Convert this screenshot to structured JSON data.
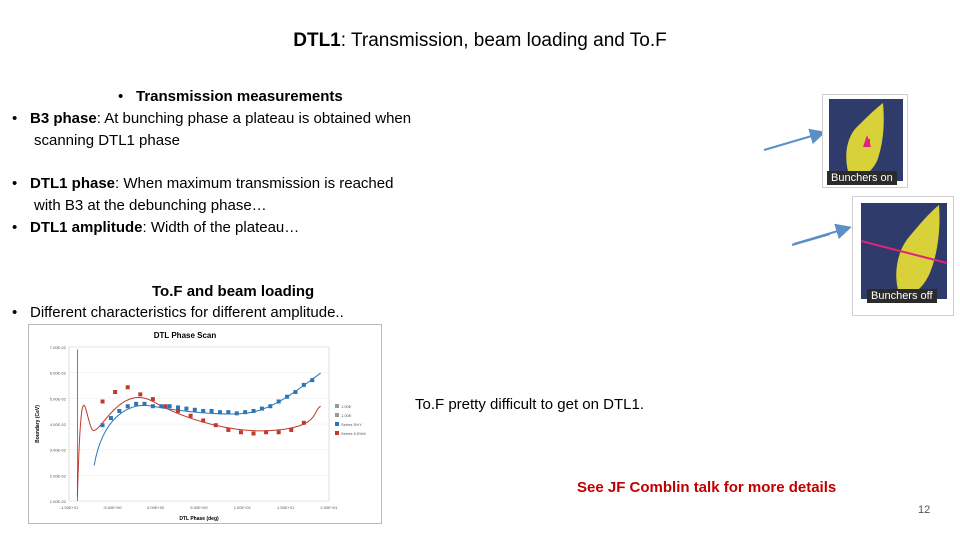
{
  "title": {
    "bold": "DTL1",
    "rest": ": Transmission, beam loading and To.F"
  },
  "section1": {
    "heading_bullet": "•",
    "heading": "Transmission measurements",
    "b3_label": "B3 phase",
    "b3_text_line1": ": At bunching phase a plateau is obtained when",
    "b3_text_line2": "scanning DTL1 phase",
    "dtl_phase_label": "DTL1 phase",
    "dtl_phase_line1": ": When maximum transmission is reached",
    "dtl_phase_line2": "with B3 at the debunching phase…",
    "dtl_amp_label": "DTL1 amplitude",
    "dtl_amp_text": ": Width of the plateau…"
  },
  "section2": {
    "heading": "To.F and beam loading",
    "text": "Different characteristics for different amplitude.."
  },
  "bullet": "•",
  "thumbs": {
    "top_caption": "Bunchers on",
    "bottom_caption": "Bunchers off"
  },
  "note_tof": "To.F pretty difficult to get on DTL1.",
  "note_ref": "See JF Comblin talk for more details",
  "slide_number": "12",
  "colors": {
    "accent_red": "#c00000",
    "series_blue": "#2e75b6",
    "series_red": "#c0392b",
    "arrow": "#5b8fc7"
  },
  "chart_data": {
    "type": "scatter",
    "title": "DTL Phase Scan",
    "xlabel": "DTL Phase (deg)",
    "ylabel": "Boundary (CeV)",
    "xlim": [
      -1.0,
      2.1
    ],
    "ylim": [
      1.0,
      7.5
    ],
    "yticks": [
      "1.00E-02",
      "2.00E-02",
      "3.00E-02",
      "4.00E-02",
      "5.00E-02",
      "6.00E-02",
      "7.00E-02"
    ],
    "xticks": [
      "-1.00E+01",
      "-5.00E+00",
      "0.00E+00",
      "5.00E+00",
      "1.00E+01",
      "1.50E+01",
      "2.00E+01"
    ],
    "legend": [
      "1.00E",
      "1.00E",
      "Series 5%Y",
      "Series 6.5%/h"
    ],
    "legend_position": "right",
    "series": [
      {
        "name": "Series 5%Y",
        "color": "#2e75b6",
        "x": [
          -0.6,
          -0.5,
          -0.4,
          -0.3,
          -0.2,
          -0.1,
          0.0,
          0.1,
          0.2,
          0.3,
          0.4,
          0.5,
          0.6,
          0.7,
          0.8,
          0.9,
          1.0,
          1.1,
          1.2,
          1.3,
          1.4,
          1.5,
          1.6,
          1.7,
          1.8,
          1.9
        ],
        "y": [
          4.2,
          4.5,
          4.8,
          5.0,
          5.1,
          5.1,
          5.0,
          5.0,
          5.0,
          4.95,
          4.9,
          4.85,
          4.8,
          4.8,
          4.75,
          4.75,
          4.7,
          4.75,
          4.8,
          4.9,
          5.0,
          5.2,
          5.4,
          5.6,
          5.9,
          6.1
        ]
      },
      {
        "name": "Series 6.5%/h",
        "color": "#c0392b",
        "x": [
          -0.6,
          -0.45,
          -0.3,
          -0.15,
          0.0,
          0.15,
          0.3,
          0.45,
          0.6,
          0.75,
          0.9,
          1.05,
          1.2,
          1.35,
          1.5,
          1.65,
          1.8
        ],
        "y": [
          5.2,
          5.6,
          5.8,
          5.5,
          5.3,
          5.0,
          4.8,
          4.6,
          4.4,
          4.2,
          4.0,
          3.9,
          3.85,
          3.9,
          3.9,
          4.0,
          4.3
        ]
      }
    ]
  }
}
